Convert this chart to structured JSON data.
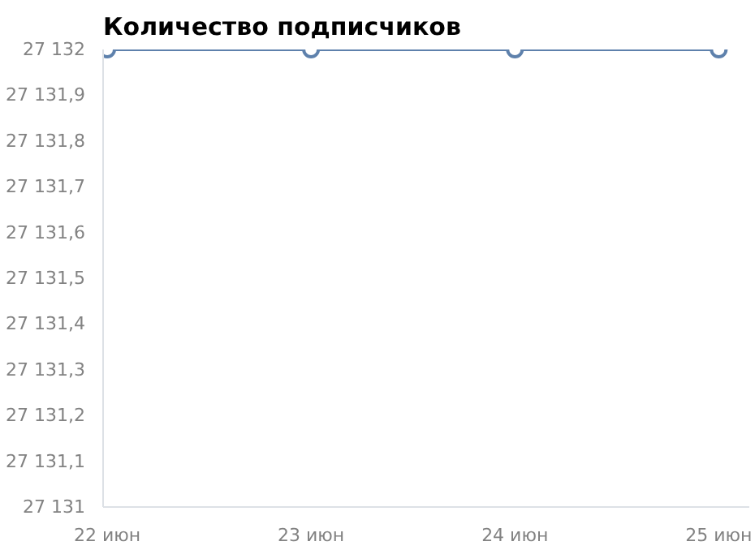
{
  "chart_data": {
    "type": "line",
    "title": "Количество подписчиков",
    "categories": [
      "22 июн",
      "23 июн",
      "24 июн",
      "25 июн"
    ],
    "series": [
      {
        "color": "#5e81ac",
        "values": [
          27132,
          27132,
          27132,
          27132
        ]
      }
    ],
    "ylim": [
      27131,
      27132
    ],
    "yticks": [
      {
        "value": 27131,
        "label": "27 131"
      },
      {
        "value": 27131.1,
        "label": "27 131,1"
      },
      {
        "value": 27131.2,
        "label": "27 131,2"
      },
      {
        "value": 27131.3,
        "label": "27 131,3"
      },
      {
        "value": 27131.4,
        "label": "27 131,4"
      },
      {
        "value": 27131.5,
        "label": "27 131,5"
      },
      {
        "value": 27131.6,
        "label": "27 131,6"
      },
      {
        "value": 27131.7,
        "label": "27 131,7"
      },
      {
        "value": 27131.8,
        "label": "27 131,8"
      },
      {
        "value": 27131.9,
        "label": "27 131,9"
      },
      {
        "value": 27132,
        "label": "27 132"
      }
    ],
    "marker": "circle",
    "line_style": "solid",
    "grid": false
  }
}
